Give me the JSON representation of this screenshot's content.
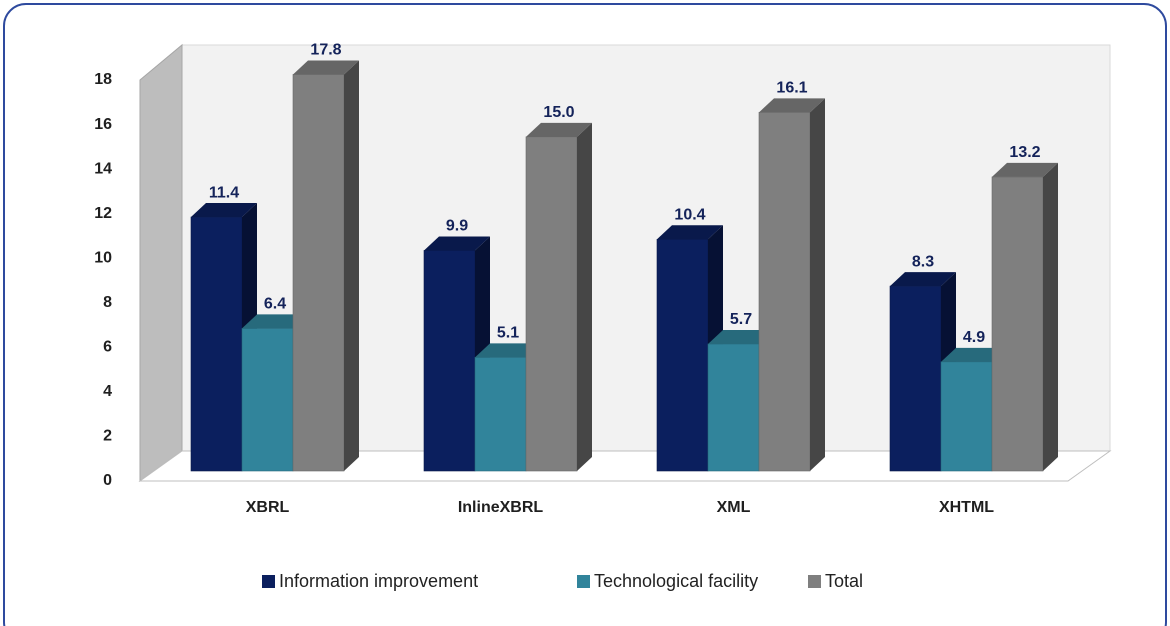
{
  "chart_data": {
    "type": "bar3d",
    "categories": [
      "XBRL",
      "InlineXBRL",
      "XML",
      "XHTML"
    ],
    "series": [
      {
        "name": "Information improvement",
        "color": "#0b1f5e",
        "values": [
          11.4,
          9.9,
          10.4,
          8.3
        ]
      },
      {
        "name": "Technological facility",
        "color": "#31849b",
        "values": [
          6.4,
          5.1,
          5.7,
          4.9
        ]
      },
      {
        "name": "Total",
        "color": "#7f7f7f",
        "values": [
          17.8,
          15.0,
          16.1,
          13.2
        ],
        "value_labels": [
          "17.8",
          "15.0",
          "16.1",
          "13.2"
        ]
      }
    ],
    "ylim": [
      0,
      18
    ],
    "yticks": [
      0,
      2,
      4,
      6,
      8,
      10,
      12,
      14,
      16,
      18
    ],
    "legend": "bottom"
  }
}
